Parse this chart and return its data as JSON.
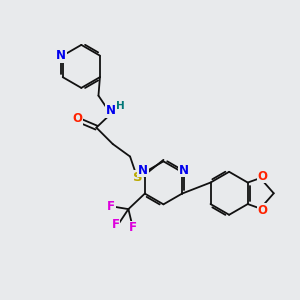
{
  "bg_color": "#e8eaec",
  "atom_colors": {
    "N": "#0000ee",
    "O": "#ff2200",
    "S": "#bbaa00",
    "F": "#dd00dd",
    "H": "#007777",
    "C": "#111111"
  }
}
